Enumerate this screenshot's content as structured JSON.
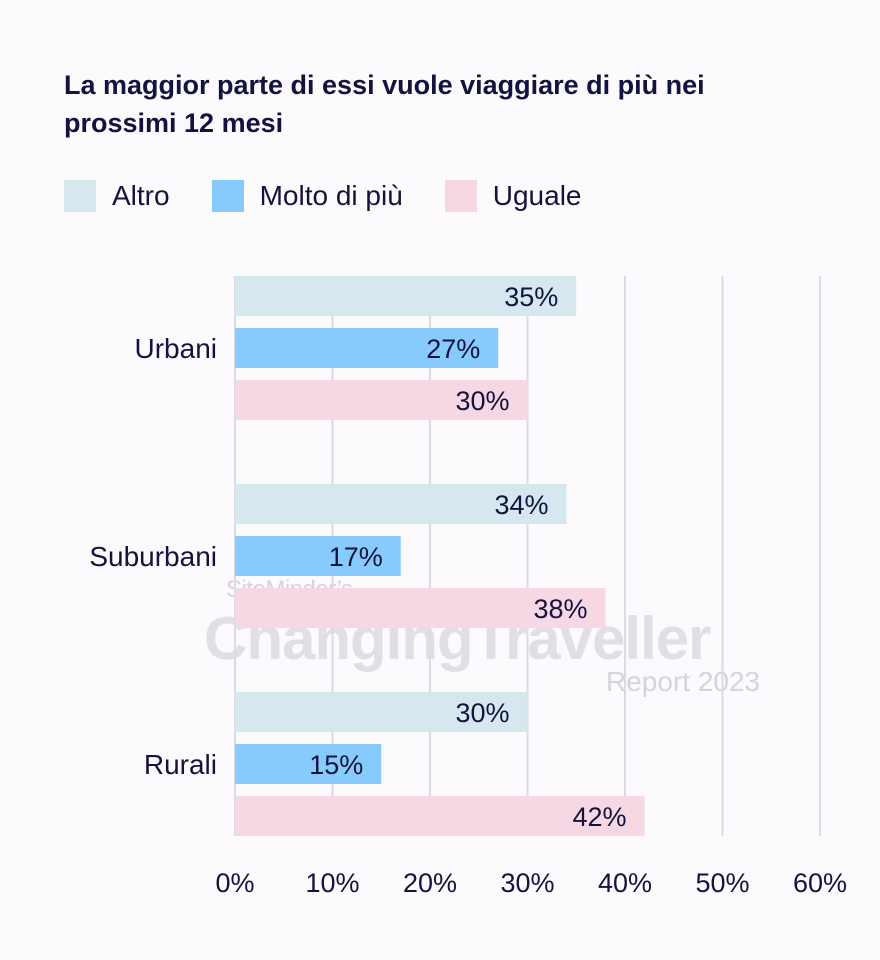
{
  "title": "La maggior parte di essi vuole viaggiare di più nei prossimi 12 mesi",
  "watermark": {
    "line1": "SiteMinder’s",
    "line2": "ChangingTraveller",
    "line3": "Report 2023"
  },
  "chart_data": {
    "type": "bar",
    "orientation": "horizontal",
    "title": "La maggior parte di essi vuole viaggiare di più nei prossimi 12 mesi",
    "categories": [
      "Urbani",
      "Suburbani",
      "Rurali"
    ],
    "series": [
      {
        "name": "Altro",
        "color": "#d6e8ef",
        "values": [
          35,
          34,
          30
        ],
        "labels": [
          "35%",
          "34%",
          "30%"
        ]
      },
      {
        "name": "Molto di più",
        "color": "#87cbfc",
        "values": [
          27,
          17,
          15
        ],
        "labels": [
          "27%",
          "17%",
          "15%"
        ]
      },
      {
        "name": "Uguale",
        "color": "#f5d8e4",
        "values": [
          30,
          38,
          42
        ],
        "labels": [
          "30%",
          "38%",
          "42%"
        ]
      }
    ],
    "xlim": [
      0,
      60
    ],
    "ticks": [
      "0%",
      "10%",
      "20%",
      "30%",
      "40%",
      "50%",
      "60%"
    ],
    "grid": true,
    "legend_position": "top-left",
    "xlabel": "",
    "ylabel": ""
  }
}
